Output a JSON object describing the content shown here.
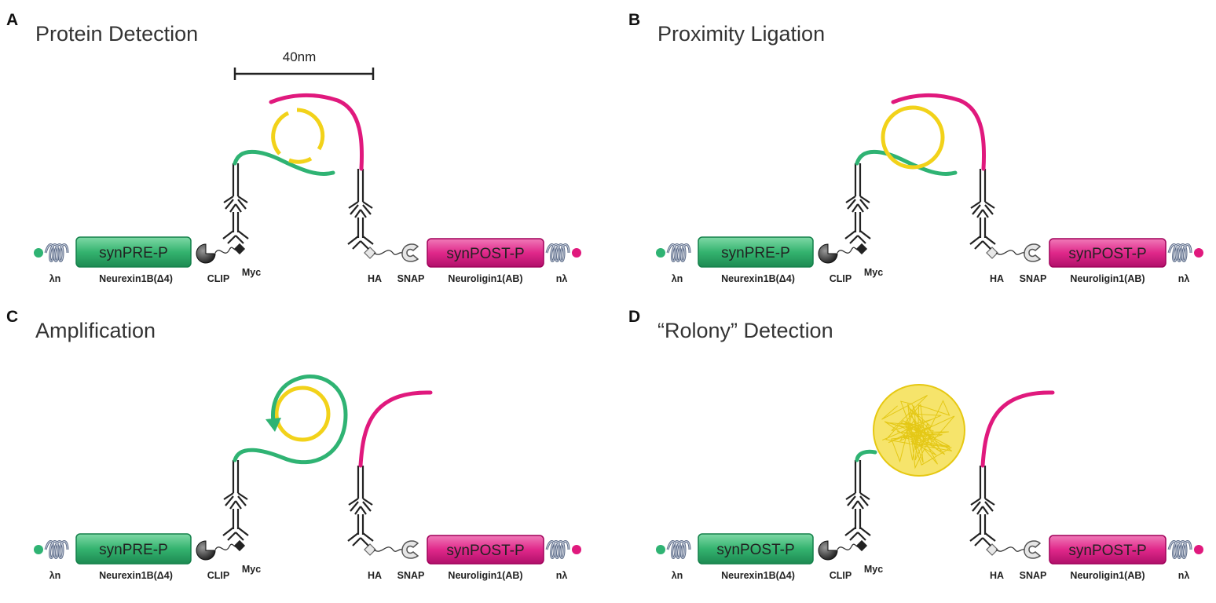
{
  "colors": {
    "pre_green": "#2fb373",
    "pre_green_dark": "#14804a",
    "post_magenta": "#e0197d",
    "post_magenta_dark": "#a1005a",
    "circle_yellow": "#f2d21a",
    "spring_gray": "#5b6a86",
    "ink": "#222222"
  },
  "scale_bar": {
    "label": "40nm"
  },
  "panels": [
    {
      "letter": "A",
      "title": "Protein Detection",
      "pre_box": "synPRE-P",
      "post_box": "synPOST-P",
      "labels": {
        "lambda_left": "λn",
        "neurexin": "Neurexin1B(Δ4)",
        "clip": "CLIP",
        "myc": "Myc",
        "ha": "HA",
        "snap": "SNAP",
        "neuroligin": "Neuroligin1(AB)",
        "lambda_right": "nλ"
      }
    },
    {
      "letter": "B",
      "title": "Proximity Ligation",
      "pre_box": "synPRE-P",
      "post_box": "synPOST-P",
      "labels": {
        "lambda_left": "λn",
        "neurexin": "Neurexin1B(Δ4)",
        "clip": "CLIP",
        "myc": "Myc",
        "ha": "HA",
        "snap": "SNAP",
        "neuroligin": "Neuroligin1(AB)",
        "lambda_right": "nλ"
      }
    },
    {
      "letter": "C",
      "title": "Amplification",
      "pre_box": "synPRE-P",
      "post_box": "synPOST-P",
      "labels": {
        "lambda_left": "λn",
        "neurexin": "Neurexin1B(Δ4)",
        "clip": "CLIP",
        "myc": "Myc",
        "ha": "HA",
        "snap": "SNAP",
        "neuroligin": "Neuroligin1(AB)",
        "lambda_right": "nλ"
      }
    },
    {
      "letter": "D",
      "title": "“Rolony” Detection",
      "pre_box": "synPOST-P",
      "post_box": "synPOST-P",
      "labels": {
        "lambda_left": "λn",
        "neurexin": "Neurexin1B(Δ4)",
        "clip": "CLIP",
        "myc": "Myc",
        "ha": "HA",
        "snap": "SNAP",
        "neuroligin": "Neuroligin1(AB)",
        "lambda_right": "nλ"
      }
    }
  ]
}
